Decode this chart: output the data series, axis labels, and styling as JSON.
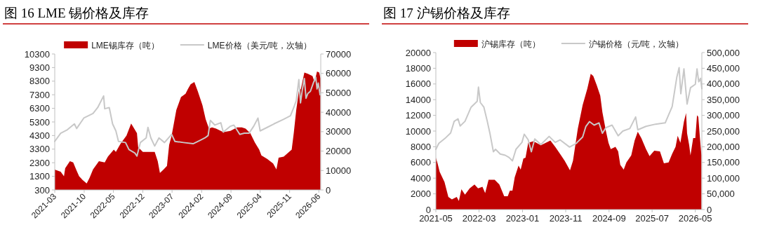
{
  "chart_data": [
    {
      "type": "area",
      "title": "图 16 LME 锡价格及库存",
      "legend": "top",
      "xlim": [
        "2021-03-01",
        "2026-06-15"
      ],
      "xticks": [
        "2021-03",
        "2021-10",
        "2022-05",
        "2022-12",
        "2023-07",
        "2024-02",
        "2024-09",
        "2025-04",
        "2025-11",
        "2026-06"
      ],
      "ylim": [
        300,
        10300
      ],
      "yticks": [
        300,
        1300,
        2300,
        3300,
        4300,
        5300,
        6300,
        7300,
        8300,
        9300,
        10300
      ],
      "y2lim": [
        0,
        70000
      ],
      "y2ticks": [
        0,
        10000,
        20000,
        30000,
        40000,
        50000,
        60000,
        70000
      ],
      "series": [
        {
          "name": "LME锡库存（吨）",
          "color": "#c00000",
          "x": [
            "2021-03-01",
            "2021-04-13",
            "2021-05-07",
            "2021-05-16",
            "2021-06-19",
            "2021-07-13",
            "2021-08-07",
            "2021-08-25",
            "2021-09-19",
            "2021-10-19",
            "2021-11-10",
            "2021-12-04",
            "2022-01-16",
            "2022-02-27",
            "2022-03-22",
            "2022-05-04",
            "2022-05-19",
            "2022-06-22",
            "2022-08-04",
            "2022-09-07",
            "2022-10-19",
            "2022-10-28",
            "2022-12-01",
            "2023-01-13",
            "2023-02-25",
            "2023-03-19",
            "2023-04-04",
            "2023-05-01",
            "2023-05-25",
            "2023-06-10",
            "2023-06-28",
            "2023-08-01",
            "2023-09-04",
            "2023-10-07",
            "2023-10-25",
            "2023-11-13",
            "2023-12-10",
            "2024-01-04",
            "2024-02-07",
            "2024-03-01",
            "2024-03-25",
            "2024-04-16",
            "2024-05-16",
            "2024-07-07",
            "2024-08-28",
            "2024-10-16",
            "2024-11-19",
            "2024-12-16",
            "2025-01-19",
            "2025-02-22",
            "2025-03-25",
            "2025-04-10",
            "2025-05-22",
            "2025-07-04",
            "2025-07-28",
            "2025-08-13",
            "2025-09-19",
            "2025-10-28",
            "2025-11-16",
            "2025-12-01",
            "2025-12-19",
            "2026-01-07",
            "2026-01-22",
            "2026-02-16",
            "2026-03-13",
            "2026-04-16",
            "2026-05-01",
            "2026-05-19",
            "2026-06-04",
            "2026-06-13"
          ],
          "values": [
            1800,
            1640,
            1300,
            1900,
            2410,
            2320,
            1720,
            1300,
            1040,
            780,
            1210,
            1810,
            2410,
            2320,
            2750,
            3270,
            3100,
            3700,
            4300,
            5190,
            4470,
            3440,
            3100,
            3100,
            3100,
            2410,
            1550,
            1810,
            2070,
            3610,
            4300,
            6180,
            7130,
            7380,
            7730,
            8070,
            8240,
            7550,
            6530,
            5500,
            4810,
            4900,
            4810,
            4550,
            4640,
            4900,
            4900,
            4810,
            4470,
            3780,
            3270,
            2840,
            2580,
            2240,
            1810,
            2670,
            2750,
            3100,
            3270,
            4470,
            6180,
            7550,
            7730,
            8930,
            8840,
            8670,
            8240,
            9010,
            8930,
            8500
          ]
        },
        {
          "name": "LME价格（美元/吨，次轴）",
          "type": "line",
          "axis": "y2",
          "color": "#c8c8c8",
          "x": [
            "2021-03-01",
            "2021-04-13",
            "2021-06-01",
            "2021-07-22",
            "2021-08-07",
            "2021-09-28",
            "2021-12-04",
            "2022-01-07",
            "2022-02-19",
            "2022-02-27",
            "2022-04-01",
            "2022-04-25",
            "2022-05-19",
            "2022-06-07",
            "2022-07-28",
            "2022-08-22",
            "2022-10-04",
            "2022-10-19",
            "2022-11-13",
            "2022-12-25",
            "2023-01-07",
            "2023-01-28",
            "2023-02-25",
            "2023-03-28",
            "2023-05-07",
            "2023-06-28",
            "2023-07-22",
            "2023-09-22",
            "2023-12-01",
            "2024-01-22",
            "2024-02-25",
            "2024-03-19",
            "2024-04-04",
            "2024-05-07",
            "2024-06-19",
            "2024-07-07",
            "2024-08-28",
            "2024-09-22",
            "2024-11-04",
            "2024-12-07",
            "2025-01-10",
            "2025-02-13",
            "2025-03-16",
            "2025-04-01",
            "2025-05-22",
            "2025-07-10",
            "2025-09-19",
            "2025-11-07",
            "2025-12-01",
            "2025-12-19",
            "2026-01-07",
            "2026-01-19",
            "2026-02-01",
            "2026-02-16",
            "2026-02-28",
            "2026-03-13",
            "2026-04-01",
            "2026-04-25",
            "2026-05-10",
            "2026-05-19",
            "2026-05-28",
            "2026-06-10"
          ],
          "values": [
            25000,
            29200,
            31000,
            34000,
            31600,
            37000,
            39400,
            42400,
            48400,
            41800,
            42400,
            34000,
            30400,
            25000,
            24400,
            20800,
            19000,
            17400,
            24400,
            26800,
            32200,
            26800,
            22600,
            26800,
            24400,
            28600,
            25000,
            24400,
            23800,
            25600,
            26800,
            28000,
            35800,
            33400,
            34600,
            29800,
            32800,
            33400,
            28600,
            29200,
            29200,
            32800,
            37000,
            30400,
            32200,
            34000,
            36400,
            38200,
            42400,
            46000,
            56800,
            44800,
            51400,
            57400,
            47200,
            49600,
            50800,
            55600,
            58000,
            52000,
            55000,
            49000
          ]
        }
      ]
    },
    {
      "type": "area",
      "title": "图 17  沪锡价格及库存",
      "legend": "top",
      "xlim": [
        "2021-05-01",
        "2026-06-16"
      ],
      "xticks": [
        "2021-05",
        "2022-03",
        "2023-01",
        "2023-11",
        "2024-09",
        "2025-07",
        "2026-05"
      ],
      "ylim": [
        0,
        20000
      ],
      "yticks": [
        0,
        2000,
        4000,
        6000,
        8000,
        10000,
        12000,
        14000,
        16000,
        18000,
        20000
      ],
      "y2lim": [
        0,
        500000
      ],
      "y2ticks": [
        0,
        {
          "value": 50000,
          "label": "50,000"
        },
        {
          "value": 100000,
          "label": "100,000"
        },
        {
          "value": 150000,
          "label": "150,000"
        },
        {
          "value": 200000,
          "label": "200,000"
        },
        {
          "value": 250000,
          "label": "250,000"
        },
        {
          "value": 300000,
          "label": "300,000"
        },
        {
          "value": 350000,
          "label": "350,000"
        },
        {
          "value": 400000,
          "label": "400,000"
        },
        {
          "value": 450000,
          "label": "450,000"
        },
        {
          "value": 500000,
          "label": "500,000"
        }
      ],
      "series": [
        {
          "name": "沪锡库存（吨）",
          "color": "#c00000",
          "x": [
            "2021-05-01",
            "2021-05-13",
            "2021-05-28",
            "2021-07-01",
            "2021-07-28",
            "2021-08-22",
            "2021-09-25",
            "2021-10-10",
            "2021-10-28",
            "2021-11-22",
            "2021-12-25",
            "2022-01-28",
            "2022-02-22",
            "2022-03-25",
            "2022-04-13",
            "2022-05-07",
            "2022-06-19",
            "2022-07-22",
            "2022-08-25",
            "2022-09-19",
            "2022-10-04",
            "2022-10-22",
            "2022-11-07",
            "2022-12-04",
            "2022-12-19",
            "2023-01-07",
            "2023-01-22",
            "2023-02-10",
            "2023-03-19",
            "2023-05-10",
            "2023-07-16",
            "2023-08-19",
            "2023-09-22",
            "2023-10-25",
            "2023-12-01",
            "2023-12-22",
            "2024-01-25",
            "2024-02-28",
            "2024-04-01",
            "2024-04-25",
            "2024-05-13",
            "2024-06-07",
            "2024-07-01",
            "2024-07-16",
            "2024-08-10",
            "2024-08-28",
            "2024-09-13",
            "2024-10-16",
            "2024-11-04",
            "2024-11-19",
            "2024-12-13",
            "2025-01-01",
            "2025-02-04",
            "2025-02-28",
            "2025-03-22",
            "2025-04-16",
            "2025-05-19",
            "2025-06-13",
            "2025-07-16",
            "2025-08-25",
            "2025-09-22",
            "2025-10-25",
            "2025-11-19",
            "2025-12-13",
            "2025-12-28",
            "2026-01-16",
            "2026-02-10",
            "2026-02-25",
            "2026-03-04",
            "2026-03-19",
            "2026-03-28",
            "2026-04-16",
            "2026-05-01",
            "2026-05-13",
            "2026-05-22",
            "2026-06-04",
            "2026-06-13"
          ],
          "values": [
            6600,
            5900,
            4800,
            3500,
            1600,
            1300,
            1600,
            1100,
            2600,
            1900,
            2700,
            3200,
            2700,
            2900,
            2100,
            3800,
            3800,
            3200,
            1700,
            1700,
            2400,
            2400,
            4100,
            5600,
            5100,
            6500,
            6600,
            8500,
            8700,
            8200,
            8800,
            8000,
            7100,
            6200,
            5000,
            6200,
            10300,
            13300,
            15400,
            17300,
            17000,
            15800,
            14500,
            12400,
            10000,
            8500,
            7700,
            8000,
            7400,
            5700,
            5100,
            6000,
            6900,
            8800,
            9900,
            9100,
            7700,
            6800,
            7500,
            7400,
            5900,
            6000,
            7100,
            8000,
            9400,
            8500,
            11200,
            12300,
            9700,
            8200,
            6900,
            9100,
            9100,
            12000,
            11800,
            8800,
            6900
          ]
        },
        {
          "name": "沪锡价格（元/吨，次轴）",
          "type": "line",
          "axis": "y2",
          "color": "#c8c8c8",
          "x": [
            "2021-05-01",
            "2021-05-22",
            "2021-07-10",
            "2021-08-13",
            "2021-09-07",
            "2021-10-04",
            "2021-10-19",
            "2021-11-22",
            "2022-01-04",
            "2022-02-16",
            "2022-02-25",
            "2022-03-10",
            "2022-04-04",
            "2022-04-28",
            "2022-05-16",
            "2022-06-10",
            "2022-06-25",
            "2022-07-28",
            "2022-09-01",
            "2022-09-28",
            "2022-10-22",
            "2022-11-16",
            "2022-12-28",
            "2023-01-13",
            "2023-02-10",
            "2023-03-04",
            "2023-03-28",
            "2023-05-10",
            "2023-07-07",
            "2023-08-19",
            "2023-09-22",
            "2023-11-28",
            "2024-01-16",
            "2024-01-25",
            "2024-02-28",
            "2024-03-22",
            "2024-04-16",
            "2024-05-19",
            "2024-06-22",
            "2024-07-16",
            "2024-08-10",
            "2024-09-22",
            "2024-11-04",
            "2024-12-07",
            "2025-01-25",
            "2025-03-07",
            "2025-03-22",
            "2025-05-19",
            "2025-07-25",
            "2025-10-01",
            "2025-11-19",
            "2025-12-22",
            "2026-01-07",
            "2026-01-19",
            "2026-02-10",
            "2026-03-04",
            "2026-03-28",
            "2026-05-01",
            "2026-05-13",
            "2026-05-25",
            "2026-06-07",
            "2026-06-16"
          ],
          "values": [
            192000,
            211000,
            229000,
            244000,
            281000,
            289000,
            266000,
            281000,
            326000,
            345000,
            390000,
            341000,
            326000,
            281000,
            244000,
            184000,
            192000,
            177000,
            173000,
            166000,
            155000,
            192000,
            214000,
            240000,
            222000,
            184000,
            225000,
            207000,
            233000,
            214000,
            222000,
            199000,
            211000,
            216000,
            231000,
            265000,
            280000,
            269000,
            276000,
            243000,
            261000,
            269000,
            235000,
            250000,
            258000,
            295000,
            254000,
            265000,
            272000,
            276000,
            328000,
            422000,
            452000,
            369000,
            448000,
            336000,
            388000,
            399000,
            448000,
            407000,
            418000,
            385000
          ]
        }
      ]
    }
  ]
}
